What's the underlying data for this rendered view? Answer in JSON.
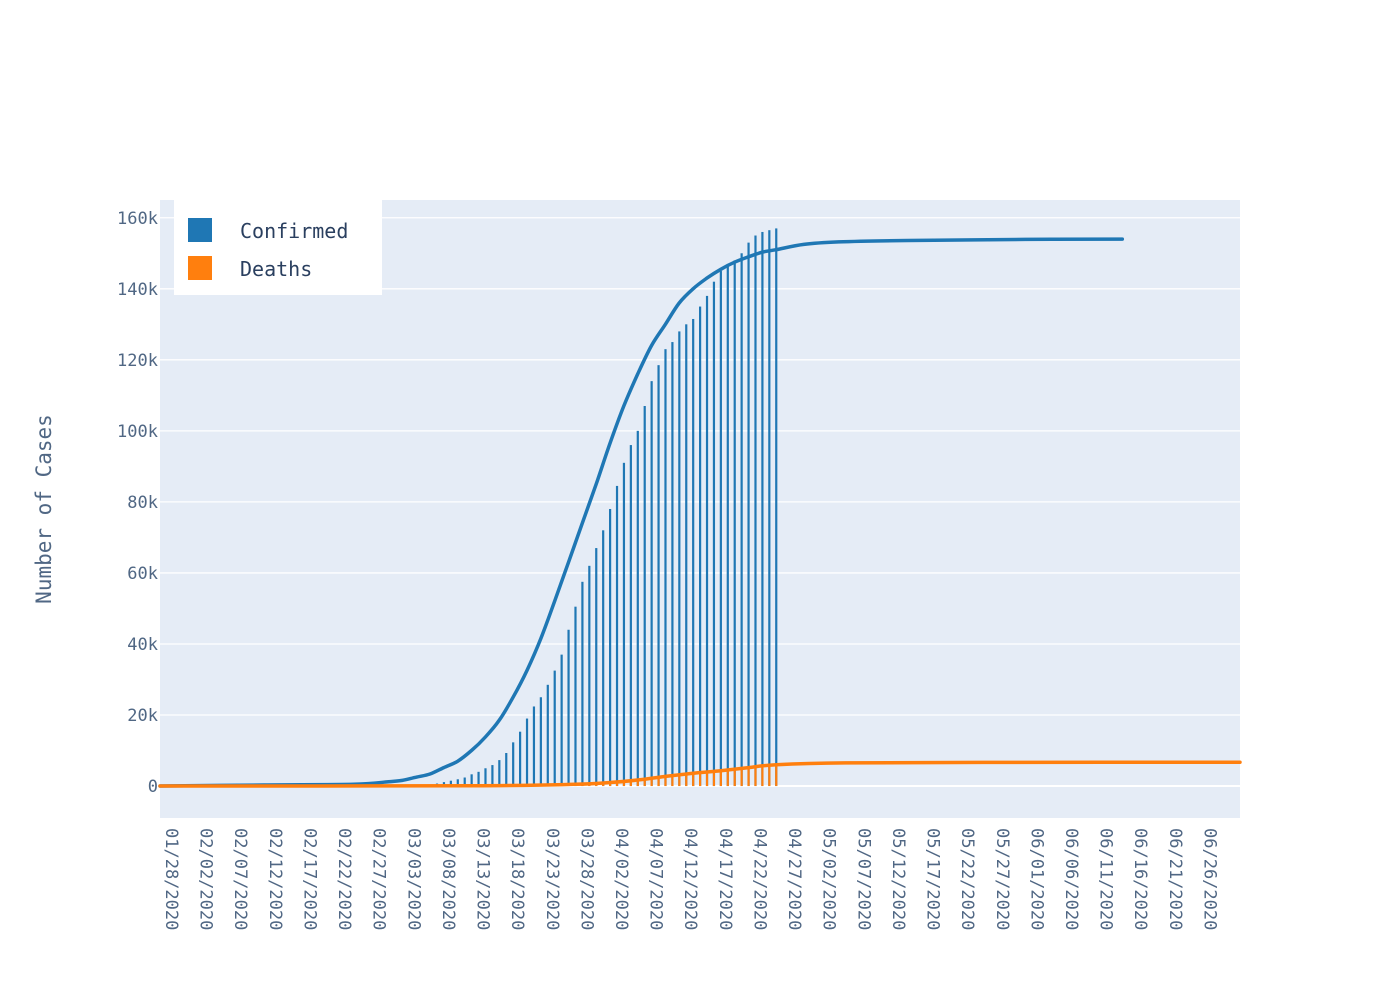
{
  "chart_data": {
    "type": "line",
    "title": "",
    "xlabel": "",
    "ylabel": "Number of Cases",
    "ylim": [
      -9000,
      165000
    ],
    "xlim": [
      "2020-01-28",
      "2020-07-02"
    ],
    "x_tick_labels": [
      "01/28/2020",
      "02/02/2020",
      "02/07/2020",
      "02/12/2020",
      "02/17/2020",
      "02/22/2020",
      "02/27/2020",
      "03/03/2020",
      "03/08/2020",
      "03/13/2020",
      "03/18/2020",
      "03/23/2020",
      "03/28/2020",
      "04/02/2020",
      "04/07/2020",
      "04/12/2020",
      "04/17/2020",
      "04/22/2020",
      "04/27/2020",
      "05/02/2020",
      "05/07/2020",
      "05/12/2020",
      "05/17/2020",
      "05/22/2020",
      "05/27/2020",
      "06/01/2020",
      "06/06/2020",
      "06/11/2020",
      "06/16/2020",
      "06/21/2020",
      "06/26/2020"
    ],
    "y_tick_labels": [
      "0",
      "20k",
      "40k",
      "60k",
      "80k",
      "100k",
      "120k",
      "140k",
      "160k"
    ],
    "y_tick_values": [
      0,
      20000,
      40000,
      60000,
      80000,
      100000,
      120000,
      140000,
      160000
    ],
    "legend": {
      "placement": "top-left",
      "entries": [
        "Confirmed",
        "Deaths"
      ]
    },
    "grid": true,
    "colors": {
      "confirmed": "#1f77b4",
      "deaths": "#ff7f0e",
      "plot_bg": "#e5ecf6",
      "grid": "#ffffff"
    },
    "series": [
      {
        "name": "Confirmed",
        "type": "bar",
        "x": [
          "2020-03-07",
          "2020-03-08",
          "2020-03-09",
          "2020-03-10",
          "2020-03-11",
          "2020-03-12",
          "2020-03-13",
          "2020-03-14",
          "2020-03-15",
          "2020-03-16",
          "2020-03-17",
          "2020-03-18",
          "2020-03-19",
          "2020-03-20",
          "2020-03-21",
          "2020-03-22",
          "2020-03-23",
          "2020-03-24",
          "2020-03-25",
          "2020-03-26",
          "2020-03-27",
          "2020-03-28",
          "2020-03-29",
          "2020-03-30",
          "2020-03-31",
          "2020-04-01",
          "2020-04-02",
          "2020-04-03",
          "2020-04-04",
          "2020-04-05",
          "2020-04-06",
          "2020-04-07",
          "2020-04-08",
          "2020-04-09",
          "2020-04-10",
          "2020-04-11",
          "2020-04-12",
          "2020-04-13",
          "2020-04-14",
          "2020-04-15",
          "2020-04-16",
          "2020-04-17",
          "2020-04-18",
          "2020-04-19",
          "2020-04-20",
          "2020-04-21",
          "2020-04-22",
          "2020-04-23",
          "2020-04-24",
          "2020-04-25",
          "2020-04-26"
        ],
        "values": [
          400,
          700,
          1100,
          1500,
          1900,
          2400,
          3300,
          4000,
          5000,
          5900,
          7300,
          9300,
          12300,
          15300,
          19000,
          22400,
          25000,
          28500,
          32500,
          37000,
          44000,
          50500,
          57500,
          62000,
          67000,
          72000,
          78000,
          84500,
          91000,
          96000,
          100000,
          107000,
          114000,
          118500,
          123000,
          125000,
          128000,
          130000,
          131500,
          135000,
          138000,
          142000,
          145000,
          147000,
          148000,
          150000,
          153000,
          155000,
          156000,
          156500,
          157000
        ]
      },
      {
        "name": "Deaths",
        "type": "bar",
        "x": [
          "2020-03-28",
          "2020-03-29",
          "2020-03-30",
          "2020-03-31",
          "2020-04-01",
          "2020-04-02",
          "2020-04-03",
          "2020-04-04",
          "2020-04-05",
          "2020-04-06",
          "2020-04-07",
          "2020-04-08",
          "2020-04-09",
          "2020-04-10",
          "2020-04-11",
          "2020-04-12",
          "2020-04-13",
          "2020-04-14",
          "2020-04-15",
          "2020-04-16",
          "2020-04-17",
          "2020-04-18",
          "2020-04-19",
          "2020-04-20",
          "2020-04-21",
          "2020-04-22",
          "2020-04-23",
          "2020-04-24",
          "2020-04-25",
          "2020-04-26"
        ],
        "values": [
          400,
          500,
          600,
          700,
          800,
          900,
          1100,
          1300,
          1500,
          1700,
          1900,
          2100,
          2400,
          2700,
          3000,
          3200,
          3400,
          3600,
          3800,
          4000,
          4200,
          4400,
          4600,
          4800,
          5000,
          5200,
          5400,
          5600,
          5800,
          6000
        ]
      },
      {
        "name": "Confirmed",
        "type": "line",
        "x": [
          "2020-01-28",
          "2020-02-12",
          "2020-02-25",
          "2020-03-01",
          "2020-03-03",
          "2020-03-05",
          "2020-03-07",
          "2020-03-09",
          "2020-03-11",
          "2020-03-13",
          "2020-03-15",
          "2020-03-17",
          "2020-03-19",
          "2020-03-21",
          "2020-03-23",
          "2020-03-25",
          "2020-03-27",
          "2020-03-29",
          "2020-03-31",
          "2020-04-02",
          "2020-04-04",
          "2020-04-06",
          "2020-04-08",
          "2020-04-10",
          "2020-04-12",
          "2020-04-14",
          "2020-04-16",
          "2020-04-18",
          "2020-04-20",
          "2020-04-22",
          "2020-04-24",
          "2020-04-26",
          "2020-04-30",
          "2020-05-05",
          "2020-05-15",
          "2020-06-01",
          "2020-06-15"
        ],
        "values": [
          0,
          300,
          500,
          1200,
          1600,
          2500,
          3400,
          5200,
          7000,
          10000,
          13800,
          18500,
          25000,
          32500,
          41500,
          52000,
          63000,
          74000,
          85000,
          96500,
          107000,
          116000,
          124000,
          130000,
          136000,
          140000,
          143000,
          145500,
          147500,
          149000,
          150300,
          151000,
          152500,
          153200,
          153600,
          153900,
          154000
        ]
      },
      {
        "name": "Deaths",
        "type": "line",
        "x": [
          "2020-01-28",
          "2020-03-13",
          "2020-03-28",
          "2020-04-02",
          "2020-04-06",
          "2020-04-10",
          "2020-04-14",
          "2020-04-18",
          "2020-04-22",
          "2020-04-26",
          "2020-05-06",
          "2020-05-26",
          "2020-07-02"
        ],
        "values": [
          0,
          100,
          500,
          1000,
          1700,
          2700,
          3600,
          4300,
          5200,
          6000,
          6500,
          6650,
          6700
        ]
      }
    ]
  }
}
